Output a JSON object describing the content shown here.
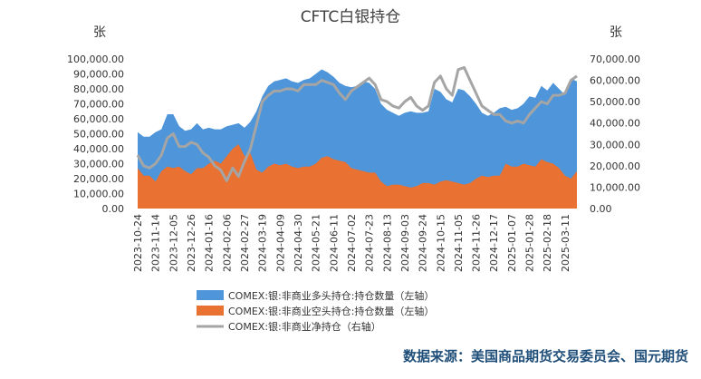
{
  "chart_data": {
    "type": "area-line",
    "title": "CFTC白银持仓",
    "y_unit": "张",
    "y2_unit": "张",
    "source": "数据来源：美国商品期货交易委员会、国元期货",
    "categories": [
      "2023-10-24",
      null,
      null,
      "2023-11-14",
      null,
      null,
      "2023-12-05",
      null,
      null,
      "2023-12-26",
      null,
      null,
      "2024-01-16",
      null,
      null,
      "2024-02-06",
      null,
      null,
      "2024-02-27",
      null,
      null,
      "2024-03-19",
      null,
      null,
      "2024-04-09",
      null,
      null,
      "2024-04-30",
      null,
      null,
      "2024-05-21",
      null,
      null,
      "2024-06-11",
      null,
      null,
      "2024-07-02",
      null,
      null,
      "2024-07-23",
      null,
      null,
      "2024-08-13",
      null,
      null,
      "2024-09-03",
      null,
      null,
      "2024-09-24",
      null,
      null,
      "2024-10-15",
      null,
      null,
      "2024-11-05",
      null,
      null,
      "2024-11-26",
      null,
      null,
      "2024-12-17",
      null,
      null,
      "2025-01-07",
      null,
      null,
      "2025-01-28",
      null,
      null,
      "2025-02-18",
      null,
      null,
      "2025-03-11",
      null,
      null
    ],
    "series": [
      {
        "name": "COMEX:银:非商业多头持仓:持仓数量（左轴）",
        "color": "#4e95d9",
        "kind": "area",
        "values": [
          51000,
          48000,
          48000,
          51000,
          53000,
          63000,
          63000,
          55000,
          52000,
          53000,
          57000,
          53000,
          54000,
          53000,
          53000,
          55000,
          56000,
          57000,
          54000,
          58000,
          65000,
          75000,
          82000,
          85000,
          86000,
          87000,
          85000,
          84000,
          86000,
          87000,
          90000,
          93000,
          91000,
          88000,
          84000,
          82000,
          81000,
          82000,
          85000,
          84000,
          80000,
          70000,
          66000,
          64000,
          62000,
          64000,
          65000,
          64000,
          64000,
          65000,
          80000,
          78000,
          73000,
          71000,
          80000,
          79000,
          75000,
          70000,
          64000,
          62000,
          64000,
          67000,
          68000,
          66000,
          67000,
          70000,
          75000,
          74000,
          82000,
          79000,
          84000,
          80000,
          76000,
          87000,
          85000
        ]
      },
      {
        "name": "COMEX:银:非商业空头持仓:持仓数量（左轴）",
        "color": "#e97132",
        "kind": "area",
        "values": [
          27000,
          22000,
          22000,
          18000,
          25000,
          28000,
          27000,
          28000,
          25000,
          23000,
          27000,
          27000,
          30000,
          32000,
          30000,
          35000,
          40000,
          43000,
          35000,
          37000,
          26000,
          24000,
          28000,
          30000,
          29000,
          30000,
          28000,
          27000,
          28000,
          28000,
          30000,
          34000,
          35000,
          33000,
          32000,
          31000,
          27000,
          26000,
          25000,
          24000,
          24000,
          18000,
          15000,
          16000,
          16000,
          15000,
          14000,
          15000,
          17000,
          17000,
          16000,
          18000,
          19000,
          18000,
          17000,
          16000,
          17000,
          20000,
          22000,
          21000,
          22000,
          22000,
          30000,
          28000,
          28000,
          30000,
          29000,
          28000,
          33000,
          31000,
          30000,
          27000,
          22000,
          20000,
          25000
        ]
      },
      {
        "name": "COMEX:银:非商业净持仓（右轴）",
        "color": "#a5a5a5",
        "kind": "line",
        "axis": "y2",
        "values": [
          25000,
          20000,
          19000,
          21000,
          25000,
          33000,
          35000,
          29000,
          29000,
          31000,
          30000,
          26000,
          24000,
          20000,
          18000,
          13000,
          19000,
          15000,
          22000,
          28000,
          39000,
          50000,
          53000,
          55000,
          55000,
          56000,
          56000,
          55000,
          58000,
          58000,
          58000,
          60000,
          59000,
          58000,
          54000,
          51000,
          55000,
          57000,
          59000,
          61000,
          58000,
          51000,
          50000,
          48000,
          47000,
          50000,
          52000,
          48000,
          46000,
          48000,
          59000,
          62000,
          56000,
          53000,
          65000,
          66000,
          60000,
          54000,
          48000,
          46000,
          44000,
          44000,
          41000,
          40000,
          41000,
          40000,
          44000,
          47000,
          50000,
          49000,
          53000,
          53000,
          54000,
          60000,
          62000
        ]
      }
    ],
    "ylim": [
      0,
      100000
    ],
    "yticks": [
      {
        "value": 0,
        "label": "0.00"
      },
      {
        "value": 10000,
        "label": "10,000.00"
      },
      {
        "value": 20000,
        "label": "20,000.00"
      },
      {
        "value": 30000,
        "label": "30,000.00"
      },
      {
        "value": 40000,
        "label": "40,000.00"
      },
      {
        "value": 50000,
        "label": "50,000.00"
      },
      {
        "value": 60000,
        "label": "60,000.00"
      },
      {
        "value": 70000,
        "label": "70,000.00"
      },
      {
        "value": 80000,
        "label": "80,000.00"
      },
      {
        "value": 90000,
        "label": "90,000.00"
      },
      {
        "value": 100000,
        "label": "100,000.00"
      }
    ],
    "y2lim": [
      0,
      70000
    ],
    "y2ticks": [
      {
        "value": 0,
        "label": "0.00"
      },
      {
        "value": 10000,
        "label": "10,000.00"
      },
      {
        "value": 20000,
        "label": "20,000.00"
      },
      {
        "value": 30000,
        "label": "30,000.00"
      },
      {
        "value": 40000,
        "label": "40,000.00"
      },
      {
        "value": 50000,
        "label": "50,000.00"
      },
      {
        "value": 60000,
        "label": "60,000.00"
      },
      {
        "value": 70000,
        "label": "70,000.00"
      }
    ]
  }
}
